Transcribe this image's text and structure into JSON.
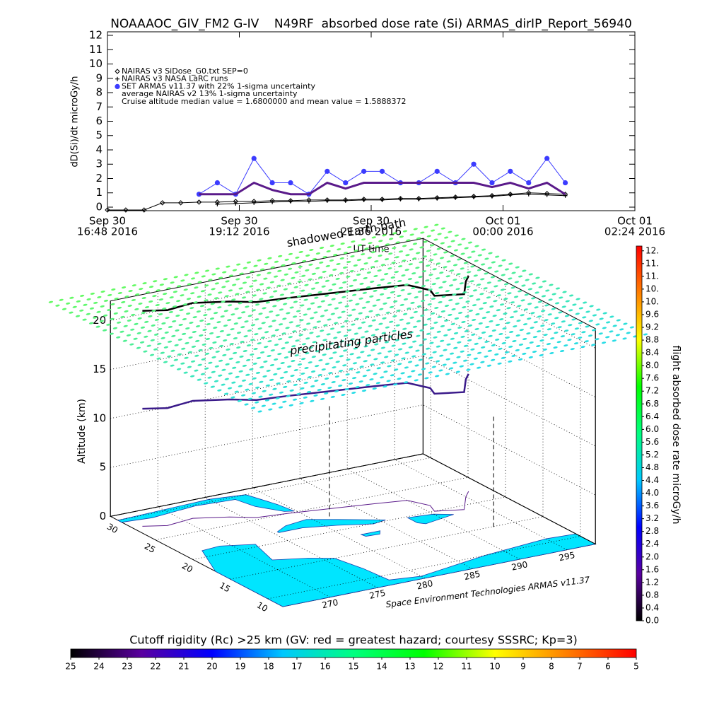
{
  "chart_data": [
    {
      "type": "line",
      "title": "NOAAAOC_GIV_FM2 G-IV    N49RF  absorbed dose rate (Si) ARMAS_dirIP_Report_56940",
      "ylabel": "dD(Si)/dt microGy/h",
      "xlabel": "UT time",
      "annotation": "Cruise altitude median value = 1.6800000 and mean value = 1.5888372",
      "x": [
        "2016-09-30T16:48",
        "2016-09-30T17:08",
        "2016-09-30T17:28",
        "2016-09-30T17:48",
        "2016-09-30T18:08",
        "2016-09-30T18:28",
        "2016-09-30T18:48",
        "2016-09-30T19:08",
        "2016-09-30T19:28",
        "2016-09-30T19:48",
        "2016-09-30T20:08",
        "2016-09-30T20:28",
        "2016-09-30T20:48",
        "2016-09-30T21:08",
        "2016-09-30T21:28",
        "2016-09-30T21:48",
        "2016-09-30T22:08",
        "2016-09-30T22:28",
        "2016-09-30T22:48",
        "2016-09-30T23:08",
        "2016-09-30T23:28",
        "2016-09-30T23:48",
        "2016-10-01T00:08",
        "2016-10-01T00:28",
        "2016-10-01T00:48",
        "2016-10-01T01:08"
      ],
      "series": [
        {
          "name": "NAIRAS v3 SiDose_G0.txt SEP=0",
          "color": "#000000",
          "marker": "diamond",
          "values": [
            -0.2,
            -0.2,
            -0.2,
            0.3,
            0.3,
            0.35,
            0.35,
            0.4,
            0.4,
            0.45,
            0.45,
            0.5,
            0.5,
            0.5,
            0.55,
            0.55,
            0.6,
            0.6,
            0.65,
            0.7,
            0.75,
            0.8,
            0.9,
            1.0,
            0.95,
            0.9
          ]
        },
        {
          "name": "NAIRAS v3 NASA LaRC runs",
          "color": "#000000",
          "marker": "plus",
          "values": [
            null,
            null,
            null,
            null,
            null,
            null,
            0.2,
            0.25,
            0.3,
            0.35,
            0.4,
            0.4,
            0.45,
            0.45,
            0.5,
            0.5,
            0.55,
            0.55,
            0.6,
            0.65,
            0.7,
            0.75,
            0.85,
            0.9,
            0.85,
            0.8
          ]
        },
        {
          "name": "SET ARMAS v11.37 with 22% 1-sigma uncertainty",
          "color": "#3c3cff",
          "marker": "circle",
          "values": [
            null,
            null,
            null,
            null,
            null,
            0.9,
            1.7,
            0.9,
            3.4,
            1.7,
            1.7,
            0.9,
            2.5,
            1.7,
            2.5,
            2.5,
            1.7,
            1.7,
            2.5,
            1.7,
            3.0,
            1.7,
            2.5,
            1.7,
            3.4,
            1.7
          ]
        },
        {
          "name": "average NAIRAS v2 13% 1-sigma uncertainty",
          "color": "#5a1a8a",
          "marker": "none",
          "values": [
            null,
            null,
            null,
            null,
            null,
            0.9,
            0.9,
            0.9,
            1.7,
            1.2,
            0.9,
            0.9,
            1.7,
            1.3,
            1.7,
            1.7,
            1.7,
            1.7,
            1.7,
            1.7,
            1.7,
            1.4,
            1.7,
            1.3,
            1.7,
            0.9
          ]
        }
      ],
      "xlim": [
        "2016-09-30T16:48",
        "2016-10-01T02:24"
      ],
      "xticks": [
        {
          "value": "2016-09-30T16:48",
          "label": [
            "Sep 30",
            "16:48 2016"
          ]
        },
        {
          "value": "2016-09-30T19:12",
          "label": [
            "Sep 30",
            "19:12 2016"
          ]
        },
        {
          "value": "2016-09-30T21:36",
          "label": [
            "Sep 30",
            "21:36 2016"
          ]
        },
        {
          "value": "2016-10-01T00:00",
          "label": [
            "Oct 01",
            "00:00 2016"
          ]
        },
        {
          "value": "2016-10-01T02:24",
          "label": [
            "Oct 01",
            "02:24 2016"
          ]
        }
      ],
      "ylim": [
        -0.25,
        12.25
      ],
      "yticks": [
        0,
        1,
        2,
        3,
        4,
        5,
        6,
        7,
        8,
        9,
        10,
        11,
        12
      ]
    },
    {
      "type": "surface3d",
      "zlabel": "Altitude (km)",
      "annotations": [
        "shadowed Earth path",
        "precipitating particles",
        "Space Environment Technologies ARMAS v11.37"
      ],
      "xlim": [
        265,
        298
      ],
      "xticks": [
        270,
        275,
        280,
        285,
        290,
        295
      ],
      "ylim": [
        8,
        31
      ],
      "yticks": [
        10,
        15,
        20,
        25,
        30
      ],
      "zlim": [
        0,
        22
      ],
      "zticks": [
        0,
        5,
        10,
        15,
        20
      ]
    },
    {
      "type": "colorbar",
      "orientation": "vertical",
      "label": "flight absorbed dose rate microGy/h",
      "lim": [
        0,
        11.75
      ],
      "colors": [
        "#000000",
        "#5a00a0",
        "#0000ff",
        "#00c8ff",
        "#00ff80",
        "#00ff00",
        "#ffff00",
        "#ff8000",
        "#ff0000"
      ],
      "ticks": [
        {
          "value": 0,
          "label": "0.0"
        },
        0.4,
        0.8,
        1.2,
        1.6,
        {
          "value": 2,
          "label": "2.0"
        },
        2.4,
        2.8,
        3.2,
        3.6,
        {
          "value": 4,
          "label": "4.0"
        },
        4.4,
        4.8,
        5.2,
        5.6,
        {
          "value": 6,
          "label": "6.0"
        },
        6.4,
        6.8,
        7.2,
        7.6,
        {
          "value": 8,
          "label": "8.0"
        },
        8.4,
        8.8,
        9.2,
        9.6,
        {
          "value": 10,
          "label": "10."
        },
        {
          "value": 10.4,
          "label": "10."
        },
        {
          "value": 10.8,
          "label": "11."
        },
        {
          "value": 11.2,
          "label": "11."
        },
        {
          "value": 11.6,
          "label": "12."
        }
      ]
    },
    {
      "type": "colorbar",
      "orientation": "horizontal",
      "label": "Cutoff rigidity (Rc) >25 km (GV: red = greatest hazard; courtesy SSSRC; Kp=3)",
      "lim": [
        25,
        5
      ],
      "colors": [
        "#000000",
        "#5a00a0",
        "#0000ff",
        "#00c8ff",
        "#00ff80",
        "#00ff00",
        "#ffff00",
        "#ff8000",
        "#ff0000"
      ],
      "ticks": [
        25,
        24,
        23,
        22,
        21,
        20,
        19,
        18,
        17,
        16,
        15,
        14,
        13,
        12,
        11,
        10,
        9,
        8,
        7,
        6,
        5
      ]
    }
  ]
}
